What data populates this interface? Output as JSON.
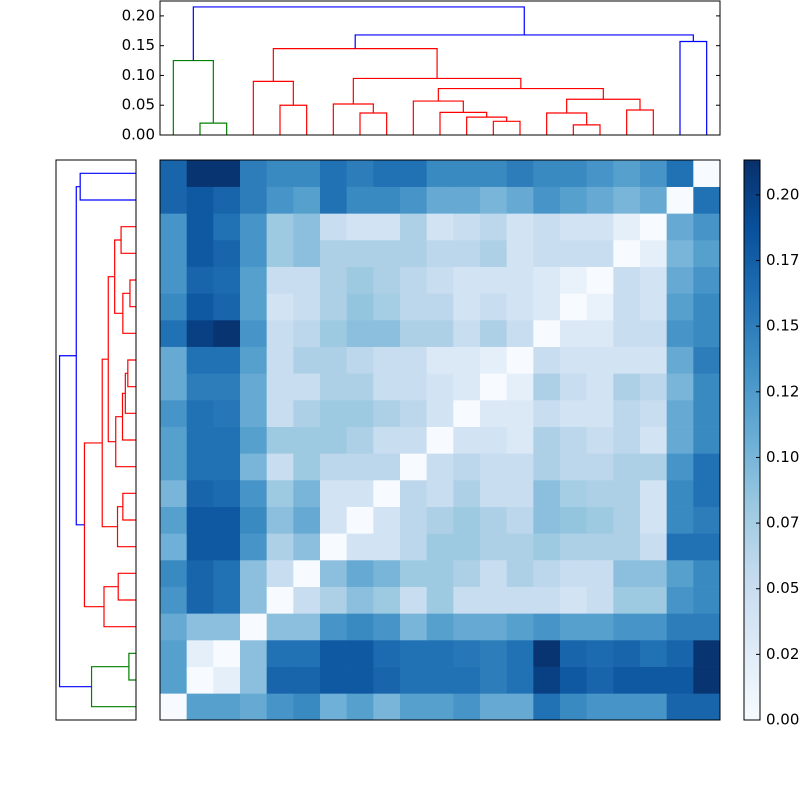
{
  "chart_data": {
    "type": "clustermap",
    "z": [
      [
        0,
        0.12,
        0.12,
        0.11,
        0.13,
        0.14,
        0.105,
        0.12,
        0.1,
        0.12,
        0.12,
        0.13,
        0.11,
        0.11,
        0.16,
        0.14,
        0.13,
        0.13,
        0.13,
        0.17,
        0.17
      ],
      [
        0.12,
        0,
        0.02,
        0.09,
        0.17,
        0.17,
        0.18,
        0.18,
        0.17,
        0.16,
        0.16,
        0.16,
        0.15,
        0.16,
        0.2,
        0.18,
        0.17,
        0.18,
        0.18,
        0.18,
        0.21
      ],
      [
        0.12,
        0.02,
        0,
        0.09,
        0.16,
        0.16,
        0.18,
        0.18,
        0.165,
        0.16,
        0.16,
        0.155,
        0.15,
        0.16,
        0.21,
        0.17,
        0.165,
        0.17,
        0.16,
        0.17,
        0.21
      ],
      [
        0.11,
        0.09,
        0.09,
        0,
        0.09,
        0.09,
        0.13,
        0.14,
        0.13,
        0.1,
        0.12,
        0.11,
        0.11,
        0.12,
        0.13,
        0.12,
        0.12,
        0.13,
        0.13,
        0.15,
        0.15
      ],
      [
        0.13,
        0.17,
        0.16,
        0.09,
        0,
        0.05,
        0.07,
        0.09,
        0.08,
        0.05,
        0.08,
        0.05,
        0.05,
        0.05,
        0.05,
        0.04,
        0.05,
        0.08,
        0.08,
        0.13,
        0.14
      ],
      [
        0.14,
        0.17,
        0.16,
        0.09,
        0.05,
        0,
        0.09,
        0.11,
        0.1,
        0.08,
        0.08,
        0.07,
        0.05,
        0.07,
        0.06,
        0.05,
        0.05,
        0.09,
        0.09,
        0.12,
        0.14
      ],
      [
        0.105,
        0.18,
        0.18,
        0.13,
        0.07,
        0.09,
        0,
        0.04,
        0.04,
        0.06,
        0.08,
        0.08,
        0.07,
        0.07,
        0.08,
        0.07,
        0.07,
        0.07,
        0.05,
        0.16,
        0.16
      ],
      [
        0.12,
        0.18,
        0.18,
        0.14,
        0.09,
        0.11,
        0.04,
        0,
        0.04,
        0.06,
        0.07,
        0.08,
        0.07,
        0.06,
        0.09,
        0.085,
        0.08,
        0.07,
        0.04,
        0.14,
        0.15
      ],
      [
        0.1,
        0.17,
        0.165,
        0.13,
        0.08,
        0.1,
        0.04,
        0.04,
        0,
        0.06,
        0.05,
        0.07,
        0.05,
        0.05,
        0.09,
        0.075,
        0.07,
        0.07,
        0.04,
        0.14,
        0.16
      ],
      [
        0.12,
        0.16,
        0.16,
        0.1,
        0.05,
        0.08,
        0.06,
        0.06,
        0.06,
        0,
        0.05,
        0.06,
        0.05,
        0.05,
        0.07,
        0.06,
        0.06,
        0.07,
        0.07,
        0.13,
        0.16
      ],
      [
        0.12,
        0.16,
        0.16,
        0.12,
        0.08,
        0.08,
        0.08,
        0.07,
        0.05,
        0.05,
        0,
        0.04,
        0.04,
        0.03,
        0.07,
        0.06,
        0.05,
        0.06,
        0.04,
        0.11,
        0.14
      ],
      [
        0.13,
        0.16,
        0.155,
        0.11,
        0.05,
        0.07,
        0.08,
        0.08,
        0.07,
        0.06,
        0.04,
        0,
        0.03,
        0.03,
        0.05,
        0.04,
        0.04,
        0.06,
        0.05,
        0.11,
        0.14
      ],
      [
        0.11,
        0.15,
        0.15,
        0.11,
        0.05,
        0.05,
        0.07,
        0.07,
        0.05,
        0.05,
        0.04,
        0.03,
        0,
        0.02,
        0.07,
        0.05,
        0.04,
        0.07,
        0.06,
        0.1,
        0.14
      ],
      [
        0.11,
        0.16,
        0.16,
        0.12,
        0.05,
        0.07,
        0.07,
        0.06,
        0.05,
        0.05,
        0.03,
        0.03,
        0.02,
        0,
        0.05,
        0.04,
        0.04,
        0.04,
        0.04,
        0.11,
        0.15
      ],
      [
        0.16,
        0.2,
        0.21,
        0.13,
        0.05,
        0.06,
        0.08,
        0.09,
        0.09,
        0.07,
        0.07,
        0.05,
        0.07,
        0.05,
        0,
        0.03,
        0.03,
        0.05,
        0.05,
        0.13,
        0.14
      ],
      [
        0.14,
        0.18,
        0.17,
        0.12,
        0.04,
        0.05,
        0.07,
        0.085,
        0.075,
        0.06,
        0.06,
        0.04,
        0.05,
        0.04,
        0.03,
        0,
        0.015,
        0.05,
        0.04,
        0.12,
        0.14
      ],
      [
        0.13,
        0.17,
        0.165,
        0.12,
        0.05,
        0.05,
        0.07,
        0.08,
        0.07,
        0.06,
        0.05,
        0.04,
        0.04,
        0.04,
        0.03,
        0.015,
        0,
        0.05,
        0.04,
        0.11,
        0.13
      ],
      [
        0.13,
        0.18,
        0.17,
        0.13,
        0.08,
        0.09,
        0.07,
        0.07,
        0.07,
        0.07,
        0.06,
        0.06,
        0.07,
        0.04,
        0.05,
        0.05,
        0.05,
        0,
        0.02,
        0.1,
        0.12
      ],
      [
        0.13,
        0.18,
        0.16,
        0.13,
        0.08,
        0.09,
        0.05,
        0.04,
        0.04,
        0.07,
        0.04,
        0.05,
        0.06,
        0.04,
        0.05,
        0.04,
        0.04,
        0.02,
        0,
        0.11,
        0.13
      ],
      [
        0.17,
        0.18,
        0.17,
        0.15,
        0.13,
        0.12,
        0.16,
        0.14,
        0.14,
        0.13,
        0.11,
        0.11,
        0.1,
        0.11,
        0.13,
        0.12,
        0.11,
        0.1,
        0.11,
        0,
        0.16
      ],
      [
        0.17,
        0.21,
        0.21,
        0.15,
        0.14,
        0.14,
        0.16,
        0.15,
        0.16,
        0.16,
        0.14,
        0.14,
        0.14,
        0.15,
        0.14,
        0.14,
        0.13,
        0.12,
        0.13,
        0.16,
        0
      ]
    ],
    "clim": [
      0,
      0.2133
    ],
    "cmap": [
      "#f7fbff",
      "#deebf7",
      "#c6dbef",
      "#9ecae1",
      "#6baed6",
      "#4292c6",
      "#2171b5",
      "#08519c",
      "#08306b"
    ],
    "cticks": [
      {
        "value": 0,
        "label": "0.00"
      },
      {
        "value": 0.025,
        "label": "0.02"
      },
      {
        "value": 0.05,
        "label": "0.05"
      },
      {
        "value": 0.075,
        "label": "0.07"
      },
      {
        "value": 0.1,
        "label": "0.10"
      },
      {
        "value": 0.125,
        "label": "0.12"
      },
      {
        "value": 0.15,
        "label": "0.15"
      },
      {
        "value": 0.175,
        "label": "0.17"
      },
      {
        "value": 0.2,
        "label": "0.20"
      }
    ],
    "dendrogram": {
      "ylim": [
        0,
        0.225
      ],
      "yticks": [
        {
          "value": 0,
          "label": "0.00"
        },
        {
          "value": 0.05,
          "label": "0.05"
        },
        {
          "value": 0.1,
          "label": "0.10"
        },
        {
          "value": 0.15,
          "label": "0.15"
        },
        {
          "value": 0.2,
          "label": "0.20"
        }
      ],
      "icoord": [
        [
          15,
          15,
          25,
          25
        ],
        [
          5,
          5,
          20,
          20
        ],
        [
          195,
          195,
          205,
          205
        ],
        [
          45,
          45,
          55,
          55
        ],
        [
          35,
          35,
          50,
          50
        ],
        [
          75,
          75,
          85,
          85
        ],
        [
          65,
          65,
          80,
          80
        ],
        [
          125,
          125,
          135,
          135
        ],
        [
          115,
          115,
          130,
          130
        ],
        [
          105,
          105,
          122.5,
          122.5
        ],
        [
          95,
          95,
          113.75,
          113.75
        ],
        [
          155,
          155,
          165,
          165
        ],
        [
          145,
          145,
          160,
          160
        ],
        [
          175,
          175,
          185,
          185
        ],
        [
          152.5,
          152.5,
          180,
          180
        ],
        [
          104.375,
          104.375,
          166.25,
          166.25
        ],
        [
          72.5,
          72.5,
          135.3125,
          135.3125
        ],
        [
          42.5,
          42.5,
          103.90625,
          103.90625
        ],
        [
          73.203125,
          73.203125,
          200,
          200
        ],
        [
          12.5,
          12.5,
          136.6015625,
          136.6015625
        ]
      ],
      "dcoord": [
        [
          0,
          0.02,
          0.02,
          0
        ],
        [
          0,
          0.125,
          0.125,
          0.02
        ],
        [
          0,
          0.157,
          0.157,
          0
        ],
        [
          0,
          0.05,
          0.05,
          0
        ],
        [
          0,
          0.09,
          0.09,
          0.05
        ],
        [
          0,
          0.037,
          0.037,
          0
        ],
        [
          0,
          0.052,
          0.052,
          0.037
        ],
        [
          0,
          0.023,
          0.023,
          0
        ],
        [
          0,
          0.03,
          0.03,
          0.023
        ],
        [
          0,
          0.038,
          0.038,
          0.03
        ],
        [
          0,
          0.057,
          0.057,
          0.038
        ],
        [
          0,
          0.017,
          0.017,
          0
        ],
        [
          0,
          0.037,
          0.037,
          0.017
        ],
        [
          0,
          0.042,
          0.042,
          0
        ],
        [
          0.037,
          0.06,
          0.06,
          0.042
        ],
        [
          0.057,
          0.078,
          0.078,
          0.06
        ],
        [
          0.052,
          0.095,
          0.095,
          0.078
        ],
        [
          0.09,
          0.145,
          0.145,
          0.095
        ],
        [
          0.145,
          0.168,
          0.168,
          0.157
        ],
        [
          0.125,
          0.215,
          0.215,
          0.168
        ]
      ],
      "colors": [
        "#008000",
        "#008000",
        "#0000ff",
        "#ff0000",
        "#ff0000",
        "#ff0000",
        "#ff0000",
        "#ff0000",
        "#ff0000",
        "#ff0000",
        "#ff0000",
        "#ff0000",
        "#ff0000",
        "#ff0000",
        "#ff0000",
        "#ff0000",
        "#ff0000",
        "#ff0000",
        "#0000ff",
        "#0000ff"
      ]
    }
  }
}
